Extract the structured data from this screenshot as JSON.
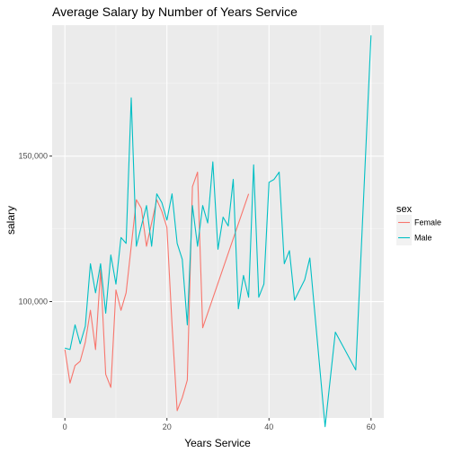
{
  "chart_data": {
    "type": "line",
    "title": "Average Salary by Number of Years Service",
    "xlabel": "Years Service",
    "ylabel": "salary",
    "xlim": [
      -2.5,
      62.5
    ],
    "ylim": [
      60000,
      195000
    ],
    "x_ticks": [
      0,
      20,
      40,
      60
    ],
    "x_tick_labels": [
      "0",
      "20",
      "40",
      "60"
    ],
    "y_ticks": [
      100000,
      150000
    ],
    "y_tick_labels": [
      "100,000",
      "150,000"
    ],
    "grid": true,
    "legend": {
      "title": "sex",
      "position": "right",
      "entries": [
        "Female",
        "Male"
      ]
    },
    "series": [
      {
        "name": "Female",
        "color": "#F8766D",
        "points": [
          [
            0,
            83500
          ],
          [
            1,
            72000
          ],
          [
            2,
            78000
          ],
          [
            3,
            79500
          ],
          [
            4,
            86000
          ],
          [
            5,
            97000
          ],
          [
            6,
            83500
          ],
          [
            7,
            111000
          ],
          [
            8,
            75000
          ],
          [
            9,
            70500
          ],
          [
            10,
            104000
          ],
          [
            11,
            97000
          ],
          [
            12,
            103000
          ],
          [
            14,
            135000
          ],
          [
            15,
            132000
          ],
          [
            16,
            119000
          ],
          [
            18,
            135000
          ],
          [
            19,
            131000
          ],
          [
            20,
            125500
          ],
          [
            21,
            92000
          ],
          [
            22,
            62500
          ],
          [
            23,
            67000
          ],
          [
            24,
            73000
          ],
          [
            25,
            139500
          ],
          [
            26,
            144500
          ],
          [
            27,
            91000
          ],
          [
            36,
            137000
          ]
        ]
      },
      {
        "name": "Male",
        "color": "#00BFC4",
        "points": [
          [
            0,
            84000
          ],
          [
            1,
            83500
          ],
          [
            2,
            92000
          ],
          [
            3,
            85500
          ],
          [
            4,
            91500
          ],
          [
            5,
            113000
          ],
          [
            6,
            103000
          ],
          [
            7,
            113000
          ],
          [
            8,
            96000
          ],
          [
            9,
            116000
          ],
          [
            10,
            106000
          ],
          [
            11,
            122000
          ],
          [
            12,
            120000
          ],
          [
            13,
            170000
          ],
          [
            14,
            119000
          ],
          [
            15,
            126000
          ],
          [
            16,
            133000
          ],
          [
            17,
            119000
          ],
          [
            18,
            137000
          ],
          [
            19,
            134000
          ],
          [
            20,
            128000
          ],
          [
            21,
            137000
          ],
          [
            22,
            120000
          ],
          [
            23,
            114500
          ],
          [
            24,
            92000
          ],
          [
            25,
            133000
          ],
          [
            26,
            119000
          ],
          [
            27,
            133000
          ],
          [
            28,
            127000
          ],
          [
            29,
            148000
          ],
          [
            30,
            118000
          ],
          [
            31,
            129000
          ],
          [
            32,
            126000
          ],
          [
            33,
            142000
          ],
          [
            34,
            97500
          ],
          [
            35,
            109000
          ],
          [
            36,
            101500
          ],
          [
            37,
            147000
          ],
          [
            38,
            101500
          ],
          [
            39,
            106000
          ],
          [
            40,
            141000
          ],
          [
            41,
            142000
          ],
          [
            42,
            144500
          ],
          [
            43,
            113000
          ],
          [
            44,
            117500
          ],
          [
            45,
            100500
          ],
          [
            46,
            104000
          ],
          [
            47,
            107500
          ],
          [
            48,
            115000
          ],
          [
            51,
            57000
          ],
          [
            53,
            89500
          ],
          [
            57,
            76500
          ],
          [
            60,
            191500
          ]
        ]
      }
    ]
  }
}
